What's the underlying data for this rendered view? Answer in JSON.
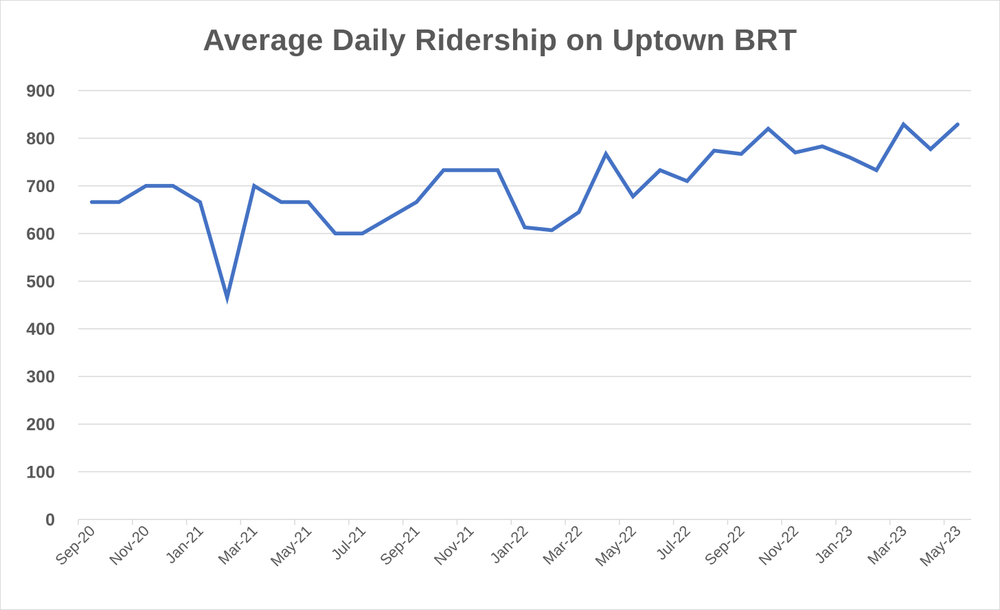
{
  "chart_data": {
    "type": "line",
    "title": "Average Daily Ridership on Uptown BRT",
    "xlabel": "",
    "ylabel": "",
    "ylim": [
      0,
      900
    ],
    "yticks": [
      "0",
      "100",
      "200",
      "300",
      "400",
      "500",
      "600",
      "700",
      "800",
      "900"
    ],
    "xtick_labels": [
      "Sep-20",
      "Nov-20",
      "Jan-21",
      "Mar-21",
      "May-21",
      "Jul-21",
      "Sep-21",
      "Nov-21",
      "Jan-22",
      "Mar-22",
      "May-22",
      "Jul-22",
      "Sep-22",
      "Nov-22",
      "Jan-23",
      "Mar-23",
      "May-23"
    ],
    "grid": true,
    "line_color": "#4472C4",
    "categories": [
      "Sep-20",
      "Oct-20",
      "Nov-20",
      "Dec-20",
      "Jan-21",
      "Feb-21",
      "Mar-21",
      "Apr-21",
      "May-21",
      "Jun-21",
      "Jul-21",
      "Aug-21",
      "Sep-21",
      "Oct-21",
      "Nov-21",
      "Dec-21",
      "Jan-22",
      "Feb-22",
      "Mar-22",
      "Apr-22",
      "May-22",
      "Jun-22",
      "Jul-22",
      "Aug-22",
      "Sep-22",
      "Oct-22",
      "Nov-22",
      "Dec-22",
      "Jan-23",
      "Feb-23",
      "Mar-23",
      "Apr-23",
      "May-23"
    ],
    "series": [
      {
        "name": "Average Daily Ridership",
        "values": [
          666,
          666,
          700,
          700,
          666,
          466,
          700,
          666,
          666,
          600,
          600,
          633,
          666,
          733,
          733,
          733,
          613,
          607,
          645,
          767,
          678,
          733,
          710,
          774,
          767,
          820,
          770,
          783,
          760,
          733,
          829,
          777,
          829
        ]
      }
    ]
  }
}
